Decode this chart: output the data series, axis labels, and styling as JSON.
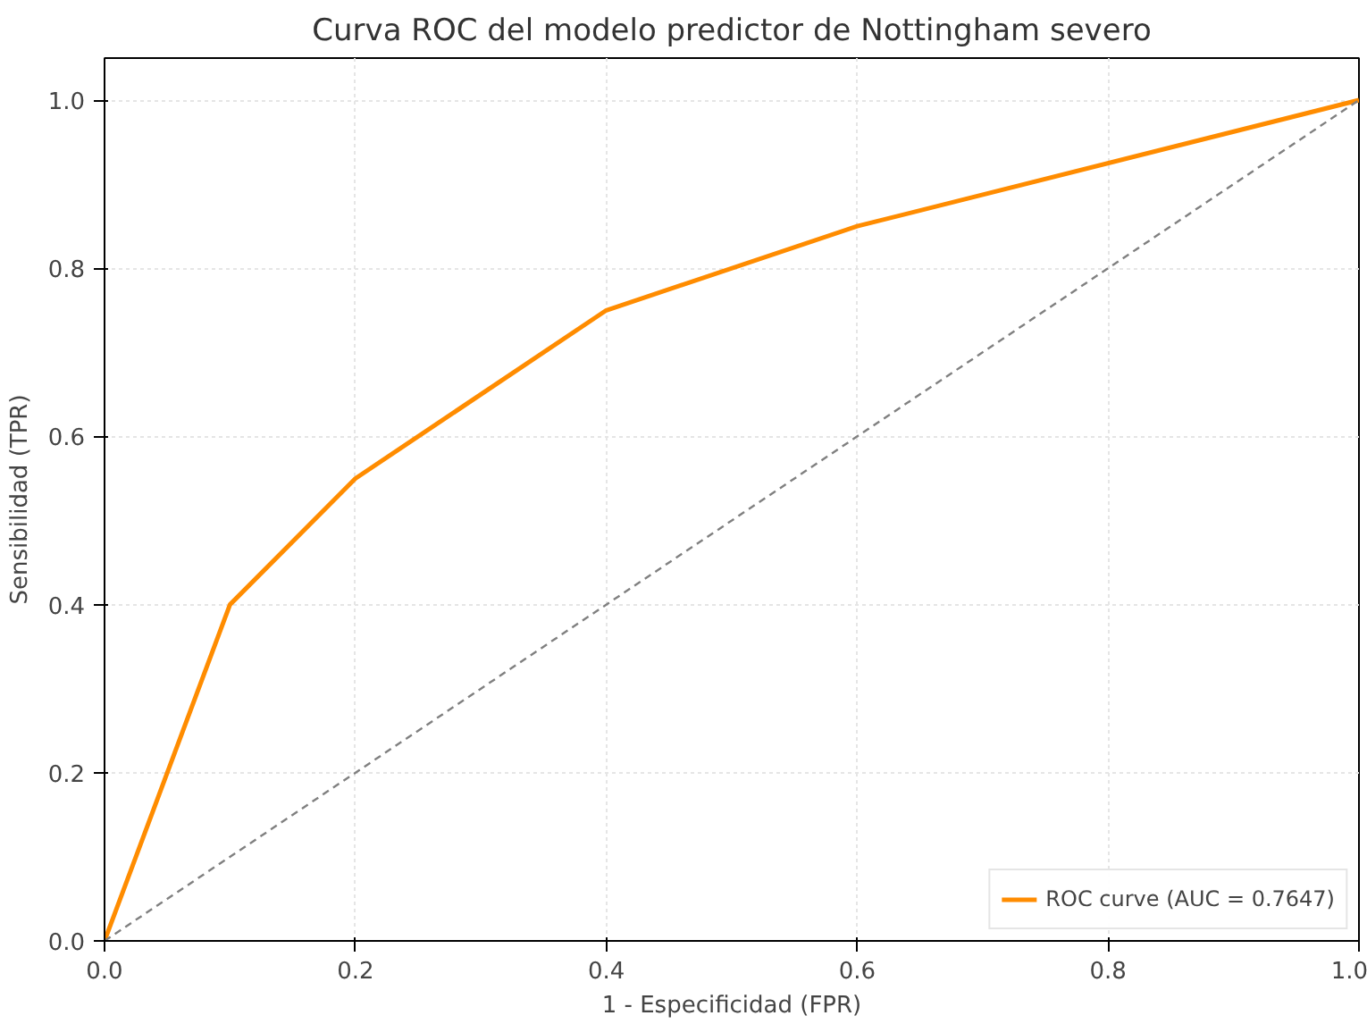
{
  "chart_data": {
    "type": "line",
    "title": "Curva ROC del modelo predictor de Nottingham severo",
    "xlabel": "1 - Especificidad (FPR)",
    "ylabel": "Sensibilidad (TPR)",
    "xlim": [
      0,
      1
    ],
    "ylim": [
      0,
      1.05
    ],
    "xticks": [
      {
        "value": 0,
        "label": "0.0"
      },
      {
        "value": 0.2,
        "label": "0.2"
      },
      {
        "value": 0.4,
        "label": "0.4"
      },
      {
        "value": 0.6,
        "label": "0.6"
      },
      {
        "value": 0.8,
        "label": "0.8"
      },
      {
        "value": 1,
        "label": "1.0"
      }
    ],
    "yticks": [
      {
        "value": 0,
        "label": "0.0"
      },
      {
        "value": 0.2,
        "label": "0.2"
      },
      {
        "value": 0.4,
        "label": "0.4"
      },
      {
        "value": 0.6,
        "label": "0.6"
      },
      {
        "value": 0.8,
        "label": "0.8"
      },
      {
        "value": 1,
        "label": "1.0"
      }
    ],
    "series": [
      {
        "name": "ROC curve (AUC = 0.7647)",
        "color": "#ff8c00",
        "x": [
          0,
          0.1,
          0.2,
          0.4,
          0.6,
          1
        ],
        "values": [
          0,
          0.4,
          0.55,
          0.75,
          0.85,
          1
        ],
        "line_style": "solid"
      },
      {
        "color": "#808080",
        "x": [
          0,
          1
        ],
        "values": [
          0,
          1
        ],
        "line_style": "dashed"
      }
    ],
    "grid": true,
    "legend": "bottom right",
    "marker": "none"
  }
}
